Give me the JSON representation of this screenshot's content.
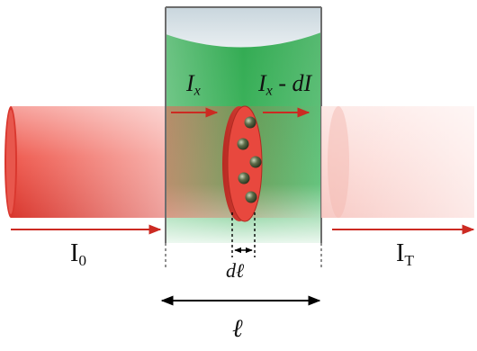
{
  "labels": {
    "ix_main": "I",
    "ix_sub": "x",
    "ixdi_main": "I",
    "ixdi_sub": "x",
    "ixdi_rest": " - dI",
    "i0_main": "I",
    "i0_sub": "0",
    "it_main": "I",
    "it_sub": "T",
    "dl": "dℓ",
    "l": "ℓ"
  },
  "colors": {
    "beam": "#e8453c",
    "cuvette_liquid": "#3cb05a",
    "cuvette_border": "#6d6d6d",
    "slab": "#e0413a",
    "particle": "#4a5a3a",
    "arrow_red": "#cc2a22",
    "arrow_black": "#000000"
  },
  "icons": {
    "absorber_particles": "dark-sphere",
    "slab": "red-disc"
  }
}
